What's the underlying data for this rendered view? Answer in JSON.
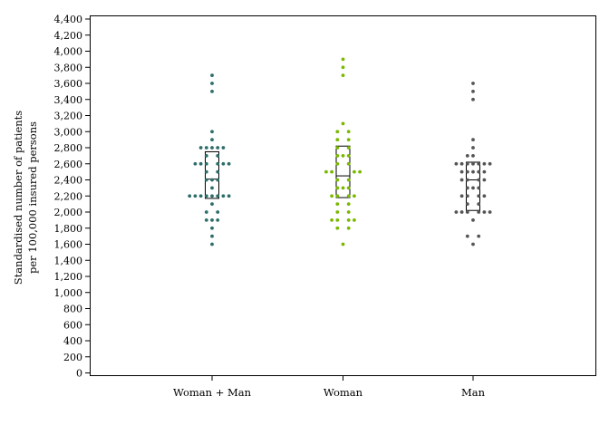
{
  "chart_data": {
    "type": "scatter",
    "subtype": "dot-strip-with-boxplot",
    "ylabel": [
      "Standardised number of patients",
      "per 100,000 insured persons"
    ],
    "xlabel": "",
    "ylim": [
      0,
      4400
    ],
    "yticks": [
      0,
      200,
      400,
      600,
      800,
      1000,
      1200,
      1400,
      1600,
      1800,
      2000,
      2200,
      2400,
      2600,
      2800,
      3000,
      3200,
      3400,
      3600,
      3800,
      4000,
      4200,
      4400
    ],
    "ytick_labels": [
      "0",
      "200",
      "400",
      "600",
      "800",
      "1,000",
      "1,200",
      "1,400",
      "1,600",
      "1,800",
      "2,000",
      "2,200",
      "2,400",
      "2,600",
      "2,800",
      "3,000",
      "3,200",
      "3,400",
      "3,600",
      "3,800",
      "4,000",
      "4,200",
      "4,400"
    ],
    "grid": false,
    "categories": [
      "Woman + Man",
      "Woman",
      "Man"
    ],
    "series": [
      {
        "color": "#2e6e6a",
        "points": [
          {
            "y": 3700,
            "offset": 0
          },
          {
            "y": 3600,
            "offset": 0
          },
          {
            "y": 3500,
            "offset": 0
          },
          {
            "y": 3000,
            "offset": 0
          },
          {
            "y": 2900,
            "offset": 0
          },
          {
            "y": 2800,
            "offset": -2
          },
          {
            "y": 2800,
            "offset": -1
          },
          {
            "y": 2800,
            "offset": 0
          },
          {
            "y": 2800,
            "offset": 1
          },
          {
            "y": 2800,
            "offset": 2
          },
          {
            "y": 2700,
            "offset": -1
          },
          {
            "y": 2700,
            "offset": 1
          },
          {
            "y": 2600,
            "offset": -3
          },
          {
            "y": 2600,
            "offset": -2
          },
          {
            "y": 2600,
            "offset": -1
          },
          {
            "y": 2600,
            "offset": 1
          },
          {
            "y": 2600,
            "offset": 2
          },
          {
            "y": 2600,
            "offset": 3
          },
          {
            "y": 2500,
            "offset": -1
          },
          {
            "y": 2500,
            "offset": 1
          },
          {
            "y": 2400,
            "offset": -1
          },
          {
            "y": 2400,
            "offset": 0
          },
          {
            "y": 2400,
            "offset": 1
          },
          {
            "y": 2300,
            "offset": 0
          },
          {
            "y": 2200,
            "offset": -4
          },
          {
            "y": 2200,
            "offset": -3
          },
          {
            "y": 2200,
            "offset": -2
          },
          {
            "y": 2200,
            "offset": -1
          },
          {
            "y": 2200,
            "offset": 0
          },
          {
            "y": 2200,
            "offset": 1
          },
          {
            "y": 2200,
            "offset": 2
          },
          {
            "y": 2200,
            "offset": 3
          },
          {
            "y": 2100,
            "offset": 0
          },
          {
            "y": 2000,
            "offset": -1
          },
          {
            "y": 2000,
            "offset": 1
          },
          {
            "y": 1900,
            "offset": -1
          },
          {
            "y": 1900,
            "offset": 0
          },
          {
            "y": 1900,
            "offset": 1
          },
          {
            "y": 1800,
            "offset": 0
          },
          {
            "y": 1700,
            "offset": 0
          },
          {
            "y": 1600,
            "offset": 0
          }
        ],
        "box": {
          "q1": 2170,
          "median": 2410,
          "q3": 2750
        }
      },
      {
        "color": "#7ab800",
        "points": [
          {
            "y": 3900,
            "offset": 0
          },
          {
            "y": 3800,
            "offset": 0
          },
          {
            "y": 3700,
            "offset": 0
          },
          {
            "y": 3100,
            "offset": 0
          },
          {
            "y": 3000,
            "offset": -1
          },
          {
            "y": 3000,
            "offset": 1
          },
          {
            "y": 2900,
            "offset": -1
          },
          {
            "y": 2900,
            "offset": 1
          },
          {
            "y": 2800,
            "offset": -1
          },
          {
            "y": 2800,
            "offset": 1
          },
          {
            "y": 2700,
            "offset": -1
          },
          {
            "y": 2700,
            "offset": 0
          },
          {
            "y": 2700,
            "offset": 1
          },
          {
            "y": 2600,
            "offset": -1
          },
          {
            "y": 2600,
            "offset": 1
          },
          {
            "y": 2500,
            "offset": -3
          },
          {
            "y": 2500,
            "offset": -2
          },
          {
            "y": 2500,
            "offset": 2
          },
          {
            "y": 2500,
            "offset": 3
          },
          {
            "y": 2400,
            "offset": -1
          },
          {
            "y": 2400,
            "offset": 1
          },
          {
            "y": 2300,
            "offset": -1
          },
          {
            "y": 2300,
            "offset": 0
          },
          {
            "y": 2300,
            "offset": 1
          },
          {
            "y": 2200,
            "offset": -2
          },
          {
            "y": 2200,
            "offset": -1
          },
          {
            "y": 2200,
            "offset": 1
          },
          {
            "y": 2200,
            "offset": 2
          },
          {
            "y": 2100,
            "offset": -1
          },
          {
            "y": 2100,
            "offset": 1
          },
          {
            "y": 2000,
            "offset": -1
          },
          {
            "y": 2000,
            "offset": 1
          },
          {
            "y": 1900,
            "offset": -2
          },
          {
            "y": 1900,
            "offset": -1
          },
          {
            "y": 1900,
            "offset": 1
          },
          {
            "y": 1900,
            "offset": 2
          },
          {
            "y": 1800,
            "offset": -1
          },
          {
            "y": 1800,
            "offset": 1
          },
          {
            "y": 1600,
            "offset": 0
          }
        ],
        "box": {
          "q1": 2180,
          "median": 2450,
          "q3": 2820
        }
      },
      {
        "color": "#555555",
        "points": [
          {
            "y": 3600,
            "offset": 0
          },
          {
            "y": 3500,
            "offset": 0
          },
          {
            "y": 3400,
            "offset": 0
          },
          {
            "y": 2900,
            "offset": 0
          },
          {
            "y": 2800,
            "offset": 0
          },
          {
            "y": 2700,
            "offset": -1
          },
          {
            "y": 2700,
            "offset": 0
          },
          {
            "y": 2600,
            "offset": -3
          },
          {
            "y": 2600,
            "offset": -2
          },
          {
            "y": 2600,
            "offset": -1
          },
          {
            "y": 2600,
            "offset": 0
          },
          {
            "y": 2600,
            "offset": 1
          },
          {
            "y": 2600,
            "offset": 2
          },
          {
            "y": 2600,
            "offset": 3
          },
          {
            "y": 2500,
            "offset": -2
          },
          {
            "y": 2500,
            "offset": -1
          },
          {
            "y": 2500,
            "offset": 0
          },
          {
            "y": 2500,
            "offset": 1
          },
          {
            "y": 2500,
            "offset": 2
          },
          {
            "y": 2400,
            "offset": -2
          },
          {
            "y": 2400,
            "offset": -1
          },
          {
            "y": 2400,
            "offset": 1
          },
          {
            "y": 2400,
            "offset": 2
          },
          {
            "y": 2300,
            "offset": -1
          },
          {
            "y": 2300,
            "offset": 0
          },
          {
            "y": 2300,
            "offset": 1
          },
          {
            "y": 2200,
            "offset": -2
          },
          {
            "y": 2200,
            "offset": -1
          },
          {
            "y": 2200,
            "offset": 1
          },
          {
            "y": 2200,
            "offset": 2
          },
          {
            "y": 2100,
            "offset": -1
          },
          {
            "y": 2100,
            "offset": 1
          },
          {
            "y": 2000,
            "offset": -3
          },
          {
            "y": 2000,
            "offset": -2
          },
          {
            "y": 2000,
            "offset": -1
          },
          {
            "y": 2000,
            "offset": 1
          },
          {
            "y": 2000,
            "offset": 2
          },
          {
            "y": 2000,
            "offset": 3
          },
          {
            "y": 1900,
            "offset": 0
          },
          {
            "y": 1700,
            "offset": -1
          },
          {
            "y": 1700,
            "offset": 1
          },
          {
            "y": 1600,
            "offset": 0
          }
        ],
        "box": {
          "q1": 2020,
          "median": 2400,
          "q3": 2620
        }
      }
    ]
  }
}
